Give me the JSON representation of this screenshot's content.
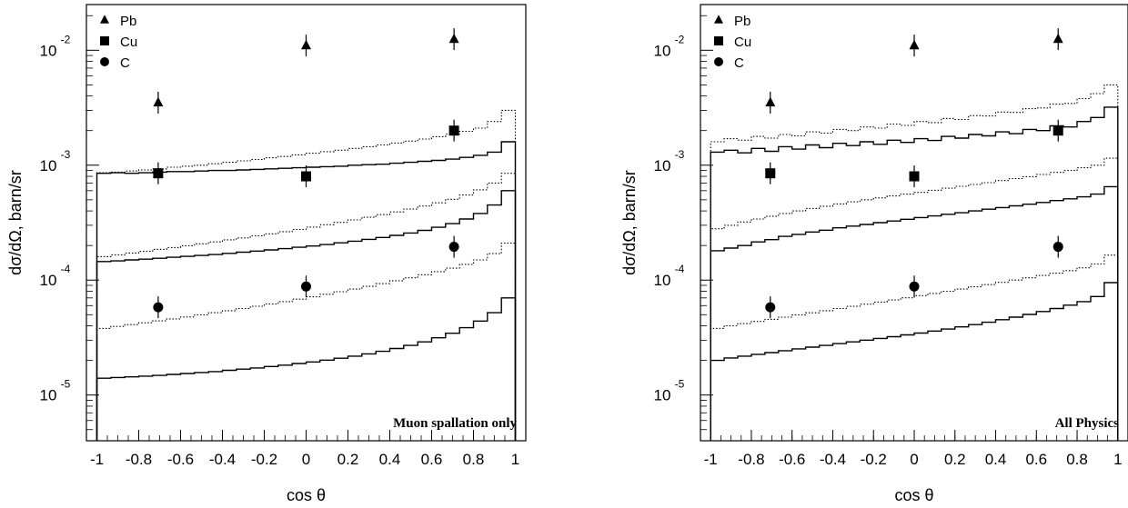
{
  "chart_data": [
    {
      "type": "line",
      "panel_label": "Muon spallation only",
      "xlabel": "cos θ",
      "ylabel": "dσ/dΩ, barn/sr",
      "xlim": [
        -1.05,
        1.05
      ],
      "ylim": [
        4e-06,
        0.025
      ],
      "yscale": "log",
      "x_ticks": [
        -1,
        -0.8,
        -0.6,
        -0.4,
        -0.2,
        0,
        0.2,
        0.4,
        0.6,
        0.8,
        1
      ],
      "x_tick_labels": [
        "-1",
        "-0.8",
        "-0.6",
        "-0.4",
        "-0.2",
        "0",
        "0.2",
        "0.4",
        "0.6",
        "0.8",
        "1"
      ],
      "y_ticks": [
        1e-05,
        0.0001,
        0.001,
        0.01
      ],
      "y_tick_labels": [
        {
          "base": "10",
          "exp": "-5"
        },
        {
          "base": "10",
          "exp": "-4"
        },
        {
          "base": "10",
          "exp": "-3"
        },
        {
          "base": "10",
          "exp": "-2"
        }
      ],
      "legend": [
        {
          "label": "Pb",
          "marker": "triangle"
        },
        {
          "label": "Cu",
          "marker": "square"
        },
        {
          "label": "C",
          "marker": "circle"
        }
      ],
      "legend_position": "top-left",
      "points": [
        {
          "target": "Pb",
          "x": [
            -0.707,
            0,
            0.707
          ],
          "y": [
            0.0035,
            0.011,
            0.0125
          ]
        },
        {
          "target": "Cu",
          "x": [
            -0.707,
            0,
            0.707
          ],
          "y": [
            0.00085,
            0.0008,
            0.002
          ]
        },
        {
          "target": "C",
          "x": [
            -0.707,
            0,
            0.707
          ],
          "y": [
            5.8e-05,
            8.8e-05,
            0.000195
          ]
        }
      ],
      "series": [
        {
          "target": "Pb",
          "style": "solid",
          "values": [
            0.00085,
            0.00086,
            0.00085,
            0.00086,
            0.00087,
            0.00088,
            0.00088,
            0.00089,
            0.0009,
            0.0009,
            0.00091,
            0.00092,
            0.00093,
            0.00094,
            0.00095,
            0.00096,
            0.00097,
            0.00098,
            0.001,
            0.00101,
            0.00102,
            0.00104,
            0.00106,
            0.00108,
            0.0011,
            0.00113,
            0.00117,
            0.00122,
            0.0013,
            0.0016
          ]
        },
        {
          "target": "Pb",
          "style": "dotted",
          "values": [
            0.00086,
            0.00087,
            0.00089,
            0.00091,
            0.00093,
            0.00096,
            0.00098,
            0.001,
            0.00103,
            0.00106,
            0.00109,
            0.00112,
            0.00116,
            0.00119,
            0.00123,
            0.00127,
            0.00131,
            0.00135,
            0.0014,
            0.00145,
            0.0015,
            0.00156,
            0.00162,
            0.00169,
            0.00177,
            0.00186,
            0.00197,
            0.0021,
            0.0024,
            0.003
          ]
        },
        {
          "target": "Cu",
          "style": "solid",
          "values": [
            0.000145,
            0.000147,
            0.00015,
            0.000152,
            0.000155,
            0.000158,
            0.000161,
            0.000164,
            0.000167,
            0.000171,
            0.000175,
            0.000179,
            0.000183,
            0.000188,
            0.000193,
            0.000198,
            0.000204,
            0.000211,
            0.000218,
            0.000226,
            0.000235,
            0.000245,
            0.000257,
            0.000271,
            0.000288,
            0.00031,
            0.00034,
            0.00038,
            0.00045,
            0.0006
          ]
        },
        {
          "target": "Cu",
          "style": "dotted",
          "values": [
            0.00016,
            0.000166,
            0.000172,
            0.000178,
            0.000185,
            0.000192,
            0.000199,
            0.000207,
            0.000215,
            0.000224,
            0.000233,
            0.000243,
            0.000253,
            0.000264,
            0.000276,
            0.000289,
            0.000303,
            0.000318,
            0.000334,
            0.000352,
            0.000371,
            0.000392,
            0.000415,
            0.000441,
            0.00047,
            0.000505,
            0.00055,
            0.00061,
            0.0007,
            0.00085
          ]
        },
        {
          "target": "C",
          "style": "solid",
          "values": [
            1.4e-05,
            1.42e-05,
            1.44e-05,
            1.46e-05,
            1.48e-05,
            1.51e-05,
            1.54e-05,
            1.57e-05,
            1.6e-05,
            1.64e-05,
            1.68e-05,
            1.72e-05,
            1.77e-05,
            1.82e-05,
            1.88e-05,
            1.94e-05,
            2.01e-05,
            2.09e-05,
            2.18e-05,
            2.28e-05,
            2.4e-05,
            2.54e-05,
            2.7e-05,
            2.9e-05,
            3.15e-05,
            3.45e-05,
            3.85e-05,
            4.4e-05,
            5.2e-05,
            7e-05
          ]
        },
        {
          "target": "C",
          "style": "dotted",
          "values": [
            3.8e-05,
            3.95e-05,
            4.1e-05,
            4.25e-05,
            4.42e-05,
            4.6e-05,
            4.78e-05,
            4.98e-05,
            5.2e-05,
            5.42e-05,
            5.66e-05,
            5.92e-05,
            6.2e-05,
            6.5e-05,
            6.82e-05,
            7.16e-05,
            7.53e-05,
            7.93e-05,
            8.36e-05,
            8.82e-05,
            9.32e-05,
            9.87e-05,
            0.0001047,
            0.0001113,
            0.0001186,
            0.000127,
            0.000137,
            0.00015,
            0.00017,
            0.00021
          ]
        }
      ]
    },
    {
      "type": "line",
      "panel_label": "All Physics",
      "xlabel": "cos θ",
      "ylabel": "dσ/dΩ, barn/sr",
      "xlim": [
        -1.05,
        1.05
      ],
      "ylim": [
        4e-06,
        0.025
      ],
      "yscale": "log",
      "x_ticks": [
        -1,
        -0.8,
        -0.6,
        -0.4,
        -0.2,
        0,
        0.2,
        0.4,
        0.6,
        0.8,
        1
      ],
      "x_tick_labels": [
        "-1",
        "-0.8",
        "-0.6",
        "-0.4",
        "-0.2",
        "0",
        "0.2",
        "0.4",
        "0.6",
        "0.8",
        "1"
      ],
      "y_ticks": [
        1e-05,
        0.0001,
        0.001,
        0.01
      ],
      "y_tick_labels": [
        {
          "base": "10",
          "exp": "-5"
        },
        {
          "base": "10",
          "exp": "-4"
        },
        {
          "base": "10",
          "exp": "-3"
        },
        {
          "base": "10",
          "exp": "-2"
        }
      ],
      "legend": [
        {
          "label": "Pb",
          "marker": "triangle"
        },
        {
          "label": "Cu",
          "marker": "square"
        },
        {
          "label": "C",
          "marker": "circle"
        }
      ],
      "legend_position": "top-left",
      "points": [
        {
          "target": "Pb",
          "x": [
            -0.707,
            0,
            0.707
          ],
          "y": [
            0.0035,
            0.011,
            0.0125
          ]
        },
        {
          "target": "Cu",
          "x": [
            -0.707,
            0,
            0.707
          ],
          "y": [
            0.00085,
            0.0008,
            0.002
          ]
        },
        {
          "target": "C",
          "x": [
            -0.707,
            0,
            0.707
          ],
          "y": [
            5.8e-05,
            8.8e-05,
            0.000195
          ]
        }
      ],
      "series": [
        {
          "target": "Pb",
          "style": "solid",
          "values": [
            0.0013,
            0.00135,
            0.00128,
            0.0014,
            0.00132,
            0.00145,
            0.00138,
            0.0015,
            0.00142,
            0.00155,
            0.00148,
            0.0016,
            0.00152,
            0.00165,
            0.00158,
            0.0017,
            0.00164,
            0.00178,
            0.00172,
            0.00185,
            0.0018,
            0.00195,
            0.00188,
            0.00205,
            0.002,
            0.0022,
            0.00215,
            0.0024,
            0.0026,
            0.0032
          ]
        },
        {
          "target": "Pb",
          "style": "dotted",
          "values": [
            0.0016,
            0.0017,
            0.00165,
            0.00178,
            0.00172,
            0.00185,
            0.0018,
            0.00195,
            0.0019,
            0.00205,
            0.002,
            0.00215,
            0.0021,
            0.00228,
            0.00222,
            0.0024,
            0.00235,
            0.00255,
            0.0025,
            0.0027,
            0.00268,
            0.0029,
            0.00288,
            0.0031,
            0.00315,
            0.0034,
            0.00345,
            0.0038,
            0.0042,
            0.005
          ]
        },
        {
          "target": "Cu",
          "style": "solid",
          "values": [
            0.00018,
            0.00019,
            0.0002,
            0.000215,
            0.000225,
            0.00024,
            0.00025,
            0.000262,
            0.000272,
            0.000285,
            0.000295,
            0.000305,
            0.000316,
            0.000327,
            0.000338,
            0.00035,
            0.000362,
            0.000374,
            0.000386,
            0.0004,
            0.000414,
            0.000428,
            0.000443,
            0.000458,
            0.000474,
            0.000492,
            0.00051,
            0.00053,
            0.00056,
            0.00065
          ]
        },
        {
          "target": "Cu",
          "style": "dotted",
          "values": [
            0.00028,
            0.0003,
            0.00032,
            0.00034,
            0.00036,
            0.00038,
            0.0004,
            0.00042,
            0.00044,
            0.00046,
            0.00048,
            0.0005,
            0.00052,
            0.00054,
            0.00056,
            0.00058,
            0.000605,
            0.00063,
            0.000655,
            0.00068,
            0.000705,
            0.000735,
            0.000765,
            0.000795,
            0.00083,
            0.000865,
            0.0009,
            0.00095,
            0.001,
            0.00115
          ]
        },
        {
          "target": "C",
          "style": "solid",
          "values": [
            2e-05,
            2.1e-05,
            2.18e-05,
            2.26e-05,
            2.34e-05,
            2.43e-05,
            2.52e-05,
            2.61e-05,
            2.7e-05,
            2.8e-05,
            2.9e-05,
            3e-05,
            3.11e-05,
            3.22e-05,
            3.34e-05,
            3.46e-05,
            3.6e-05,
            3.75e-05,
            3.92e-05,
            4.1e-05,
            4.3e-05,
            4.52e-05,
            4.76e-05,
            5.03e-05,
            5.33e-05,
            5.66e-05,
            6.05e-05,
            6.5e-05,
            7.2e-05,
            9.5e-05
          ]
        },
        {
          "target": "C",
          "style": "dotted",
          "values": [
            3.8e-05,
            4e-05,
            4.18e-05,
            4.37e-05,
            4.56e-05,
            4.76e-05,
            4.97e-05,
            5.19e-05,
            5.42e-05,
            5.66e-05,
            5.91e-05,
            6.17e-05,
            6.44e-05,
            6.72e-05,
            7.02e-05,
            7.33e-05,
            7.66e-05,
            8e-05,
            8.36e-05,
            8.74e-05,
            9.14e-05,
            9.56e-05,
            0.0001,
            0.0001047,
            0.0001097,
            0.000115,
            0.000121,
            0.000128,
            0.000138,
            0.000165
          ]
        }
      ]
    }
  ]
}
